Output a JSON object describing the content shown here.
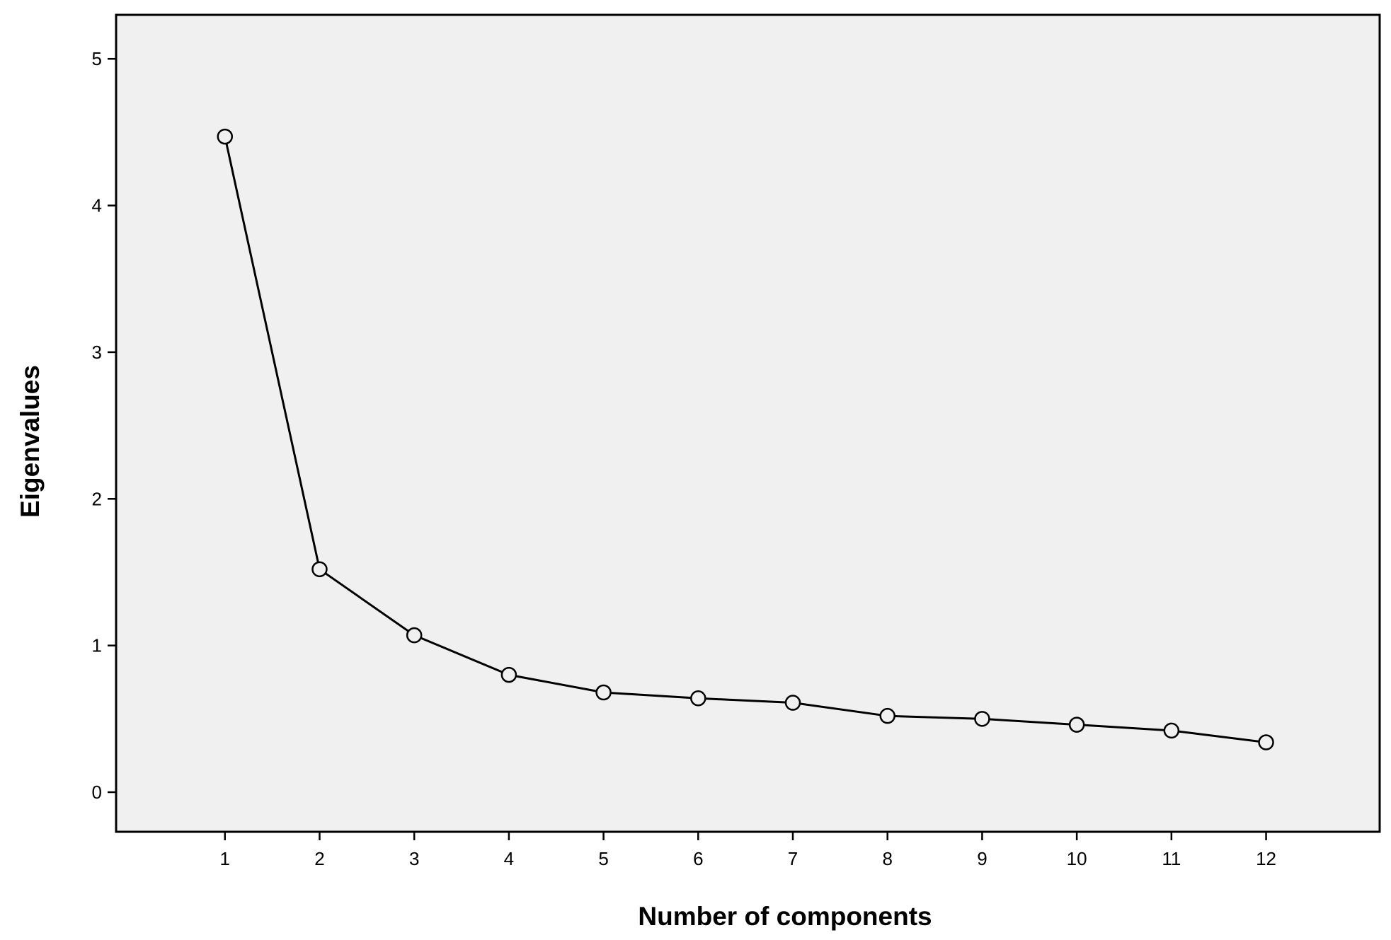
{
  "chart_data": {
    "type": "line",
    "title": "",
    "xlabel": "Number of components",
    "ylabel": "Eigenvalues",
    "x": [
      1,
      2,
      3,
      4,
      5,
      6,
      7,
      8,
      9,
      10,
      11,
      12
    ],
    "x_tick_labels": [
      "1",
      "2",
      "3",
      "4",
      "5",
      "6",
      "7",
      "8",
      "9",
      "10",
      "11",
      "12"
    ],
    "y_tick_labels": [
      "0",
      "1",
      "2",
      "3",
      "4",
      "5"
    ],
    "series": [
      {
        "values": [
          4.47,
          1.52,
          1.07,
          0.8,
          0.68,
          0.64,
          0.61,
          0.52,
          0.5,
          0.46,
          0.42,
          0.34
        ],
        "marker": "open-circle",
        "color": "#000000"
      }
    ],
    "xlim": [
      -0.15,
      13.2
    ],
    "ylim": [
      -0.27,
      5.3
    ],
    "grid": false,
    "legend": "none",
    "plot_background": "#f0f0f0",
    "line_color": "#000000"
  }
}
